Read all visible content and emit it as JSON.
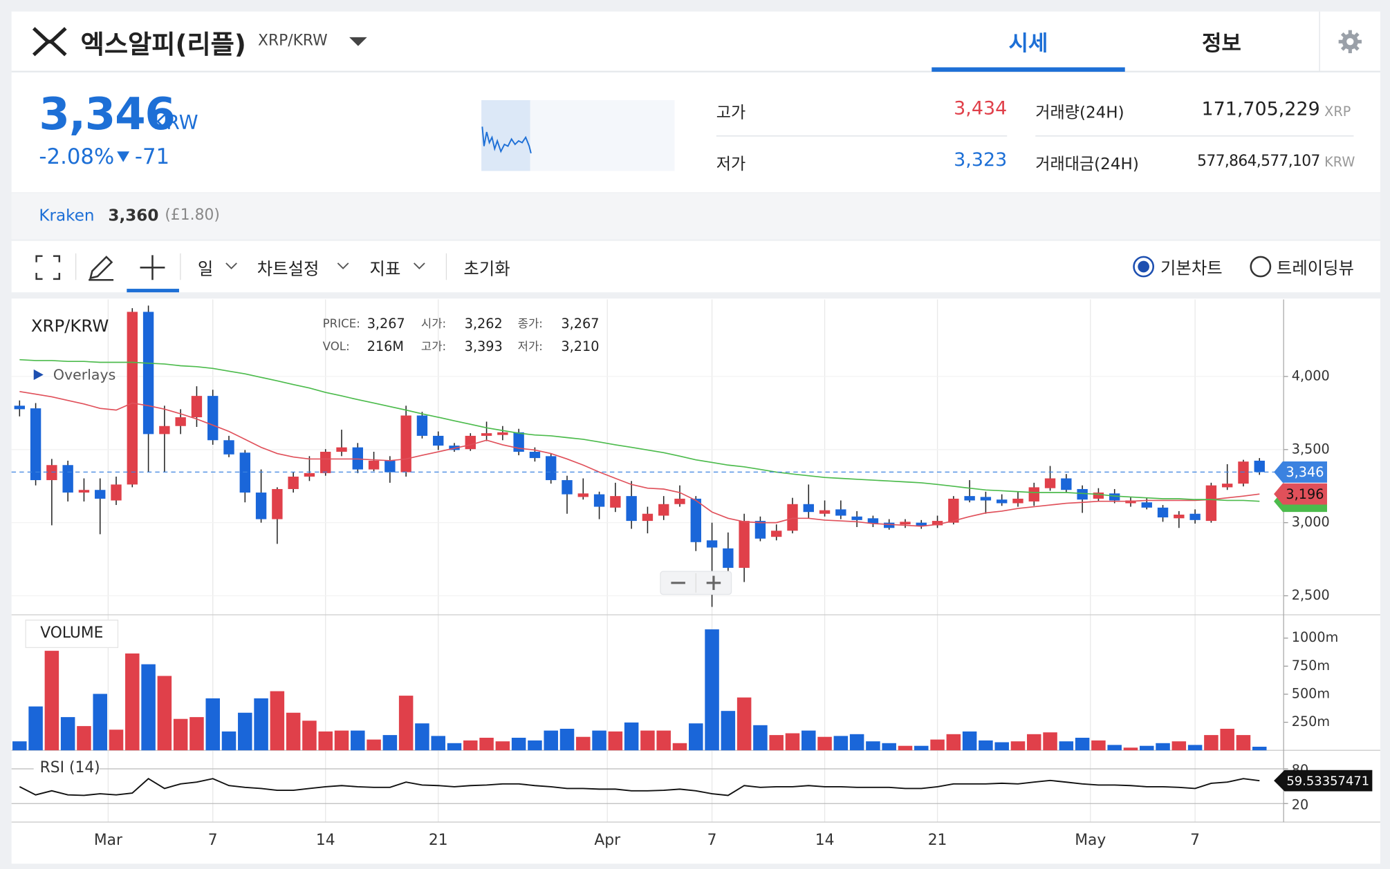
{
  "header": {
    "name": "엑스알피(리플)",
    "pair": "XRP/KRW",
    "tabs": [
      "시세",
      "정보"
    ]
  },
  "summary": {
    "price": "3,346",
    "currency": "KRW",
    "change_rate": "-2.08%",
    "change": "-71",
    "stats": [
      {
        "label": "고가",
        "value": "3,434"
      },
      {
        "label": "저가",
        "value": "3,323"
      },
      {
        "label": "거래량(24H)",
        "value": "171,705,229",
        "unit": "XRP"
      },
      {
        "label": "거래대금(24H)",
        "value": "577,864,577,107",
        "unit": "KRW"
      }
    ],
    "exchange": {
      "name": "Kraken",
      "price": "3,360",
      "fx": "(£1.80)"
    }
  },
  "toolbar": {
    "menus": [
      "일",
      "차트설정",
      "지표"
    ],
    "reset": "초기화",
    "modes": [
      "기본차트",
      "트레이딩뷰"
    ]
  },
  "chart_data": [
    {
      "type": "candlestick",
      "title": "XRP/KRW",
      "overlays": "Overlays",
      "info": [
        [
          "PRICE:",
          "3,267",
          "시가:",
          "3,262",
          "종가:",
          "3,267"
        ],
        [
          "VOL:",
          "216M",
          "고가:",
          "3,393",
          "저가:",
          "3,210"
        ]
      ],
      "up_color": "#e0404a",
      "down_color": "#1a66d9",
      "open": [
        3800,
        3782,
        3291,
        3394,
        3206,
        3224,
        3152,
        3261,
        4442,
        3606,
        3661,
        3721,
        3867,
        3564,
        3479,
        3206,
        3024,
        3230,
        3315,
        3339,
        3485,
        3515,
        3364,
        3424,
        3345,
        3733,
        3594,
        3527,
        3503,
        3594,
        3600,
        3618,
        3485,
        3455,
        3291,
        3176,
        3194,
        3103,
        3182,
        3012,
        3048,
        3127,
        3164,
        2879,
        2824,
        2691,
        3012,
        2903,
        2945,
        3127,
        3061,
        3091,
        3042,
        3030,
        3000,
        2988,
        3000,
        2982,
        3000,
        3182,
        3176,
        3158,
        3133,
        3145,
        3236,
        3303,
        3230,
        3164,
        3200,
        3133,
        3139,
        3103,
        3030,
        3061,
        3012,
        3242,
        3267,
        3424
      ],
      "high": [
        3836,
        3818,
        3436,
        3424,
        3303,
        3303,
        3315,
        4467,
        4485,
        3800,
        3776,
        3933,
        3909,
        3594,
        3497,
        3364,
        3242,
        3345,
        3455,
        3503,
        3636,
        3545,
        3485,
        3455,
        3800,
        3758,
        3624,
        3545,
        3612,
        3691,
        3661,
        3642,
        3515,
        3473,
        3321,
        3303,
        3212,
        3273,
        3285,
        3109,
        3182,
        3255,
        3182,
        3000,
        2933,
        3061,
        3042,
        2988,
        3170,
        3261,
        3152,
        3152,
        3079,
        3048,
        3024,
        3024,
        3018,
        3048,
        3182,
        3291,
        3212,
        3194,
        3212,
        3273,
        3388,
        3333,
        3255,
        3236,
        3230,
        3176,
        3170,
        3121,
        3079,
        3091,
        3273,
        3400,
        3430,
        3442
      ],
      "low": [
        3727,
        3255,
        2982,
        3145,
        3145,
        2921,
        3121,
        3242,
        3345,
        3345,
        3606,
        3655,
        3533,
        3448,
        3139,
        3000,
        2855,
        3206,
        3285,
        3321,
        3455,
        3339,
        3352,
        3273,
        3315,
        3576,
        3497,
        3485,
        3491,
        3558,
        3564,
        3461,
        3418,
        3267,
        3061,
        3158,
        3024,
        3073,
        2958,
        2927,
        3018,
        3109,
        2806,
        2424,
        2667,
        2594,
        2873,
        2879,
        2927,
        3030,
        3042,
        3024,
        2970,
        2970,
        2952,
        2964,
        2958,
        2964,
        2988,
        3139,
        3061,
        3115,
        3109,
        3115,
        3218,
        3206,
        3067,
        3145,
        3133,
        3109,
        3091,
        3006,
        2964,
        2994,
        3000,
        3224,
        3248,
        3327
      ],
      "close": [
        3776,
        3291,
        3394,
        3206,
        3224,
        3164,
        3261,
        4442,
        3606,
        3661,
        3721,
        3867,
        3564,
        3467,
        3206,
        3024,
        3230,
        3315,
        3339,
        3485,
        3515,
        3364,
        3424,
        3345,
        3733,
        3594,
        3527,
        3497,
        3594,
        3612,
        3618,
        3485,
        3442,
        3291,
        3194,
        3200,
        3109,
        3182,
        3012,
        3061,
        3127,
        3164,
        2867,
        2830,
        2691,
        3012,
        2891,
        2945,
        3127,
        3073,
        3085,
        3048,
        3018,
        2994,
        2964,
        3006,
        2976,
        3012,
        3164,
        3152,
        3152,
        3133,
        3164,
        3242,
        3303,
        3224,
        3158,
        3206,
        3152,
        3152,
        3103,
        3036,
        3055,
        3018,
        3255,
        3267,
        3418,
        3346
      ],
      "lines": [
        {
          "color": "#e0505a",
          "end_label": "3,196",
          "values": [
            3897,
            3879,
            3861,
            3836,
            3812,
            3782,
            3770,
            3818,
            3800,
            3776,
            3745,
            3709,
            3667,
            3624,
            3570,
            3515,
            3473,
            3449,
            3436,
            3436,
            3436,
            3436,
            3430,
            3424,
            3436,
            3461,
            3485,
            3509,
            3533,
            3564,
            3533,
            3509,
            3497,
            3473,
            3436,
            3394,
            3346,
            3303,
            3261,
            3236,
            3230,
            3206,
            3152,
            3073,
            3030,
            3006,
            3000,
            3000,
            3030,
            3030,
            3018,
            3012,
            3006,
            2994,
            2988,
            2982,
            2976,
            2988,
            3012,
            3042,
            3067,
            3079,
            3097,
            3109,
            3121,
            3133,
            3139,
            3146,
            3146,
            3146,
            3152,
            3152,
            3152,
            3152,
            3158,
            3170,
            3182,
            3196
          ]
        },
        {
          "color": "#4cbb4c",
          "values": [
            4115,
            4109,
            4109,
            4103,
            4103,
            4097,
            4097,
            4097,
            4091,
            4085,
            4073,
            4067,
            4055,
            4036,
            4018,
            3994,
            3970,
            3945,
            3921,
            3891,
            3867,
            3842,
            3818,
            3794,
            3770,
            3745,
            3721,
            3697,
            3673,
            3649,
            3630,
            3612,
            3600,
            3594,
            3582,
            3570,
            3552,
            3533,
            3515,
            3497,
            3479,
            3455,
            3430,
            3412,
            3394,
            3382,
            3364,
            3346,
            3333,
            3321,
            3309,
            3303,
            3297,
            3291,
            3285,
            3279,
            3273,
            3261,
            3249,
            3236,
            3224,
            3218,
            3212,
            3206,
            3206,
            3206,
            3200,
            3194,
            3182,
            3176,
            3170,
            3164,
            3164,
            3158,
            3158,
            3152,
            3152,
            3146
          ]
        }
      ],
      "price_line": {
        "value": 3346,
        "label": "3,346",
        "color": "#3b82e0"
      },
      "xlim": [
        -0.5,
        78.5
      ],
      "xticks": [
        {
          "value": 5.5,
          "label": "Mar"
        },
        {
          "value": 12,
          "label": "7"
        },
        {
          "value": 19,
          "label": "14"
        },
        {
          "value": 26,
          "label": "21"
        },
        {
          "value": 36.5,
          "label": "Apr"
        },
        {
          "value": 43,
          "label": "7"
        },
        {
          "value": 50,
          "label": "14"
        },
        {
          "value": 57,
          "label": "21"
        },
        {
          "value": 66.5,
          "label": "May"
        },
        {
          "value": 73,
          "label": "7"
        }
      ],
      "ylim": [
        2370,
        4527
      ],
      "yticks": [
        {
          "value": 4000,
          "label": "4,000"
        },
        {
          "value": 3500,
          "label": "3,500"
        },
        {
          "value": 3000,
          "label": "3,000"
        },
        {
          "value": 2500,
          "label": "2,500"
        }
      ],
      "grid": true
    },
    {
      "type": "bar",
      "title": "VOLUME",
      "values": [
        80,
        391,
        887,
        296,
        216,
        503,
        184,
        863,
        767,
        663,
        280,
        296,
        463,
        168,
        335,
        463,
        527,
        335,
        264,
        168,
        176,
        176,
        96,
        136,
        487,
        240,
        128,
        64,
        88,
        112,
        80,
        112,
        88,
        176,
        192,
        120,
        176,
        168,
        248,
        176,
        176,
        64,
        240,
        1078,
        351,
        471,
        224,
        136,
        152,
        176,
        120,
        128,
        144,
        80,
        64,
        40,
        40,
        96,
        144,
        168,
        88,
        72,
        80,
        144,
        160,
        80,
        112,
        88,
        48,
        24,
        40,
        64,
        80,
        48,
        136,
        192,
        136,
        32
      ],
      "ylim": [
        0,
        1200
      ],
      "yticks": [
        {
          "value": 1000,
          "label": "1000m"
        },
        {
          "value": 750,
          "label": "750m"
        },
        {
          "value": 500,
          "label": "500m"
        },
        {
          "value": 250,
          "label": "250m"
        }
      ]
    },
    {
      "type": "line",
      "title": "RSI (14)",
      "color": "#111111",
      "values": [
        49,
        35,
        42,
        35,
        34,
        37,
        35,
        38,
        63,
        46,
        54,
        57,
        63,
        51,
        48,
        46,
        43,
        43,
        46,
        49,
        51,
        49,
        48,
        48,
        57,
        52,
        51,
        49,
        51,
        52,
        54,
        54,
        51,
        49,
        46,
        46,
        45,
        45,
        42,
        42,
        43,
        45,
        42,
        37,
        34,
        51,
        48,
        49,
        49,
        51,
        49,
        49,
        48,
        48,
        48,
        46,
        46,
        49,
        54,
        54,
        54,
        55,
        54,
        57,
        60,
        57,
        54,
        52,
        52,
        51,
        49,
        49,
        48,
        46,
        55,
        57,
        63,
        59.53357471
      ],
      "ylim": [
        -12,
        89
      ],
      "yticks": [
        80,
        20
      ]
    }
  ]
}
